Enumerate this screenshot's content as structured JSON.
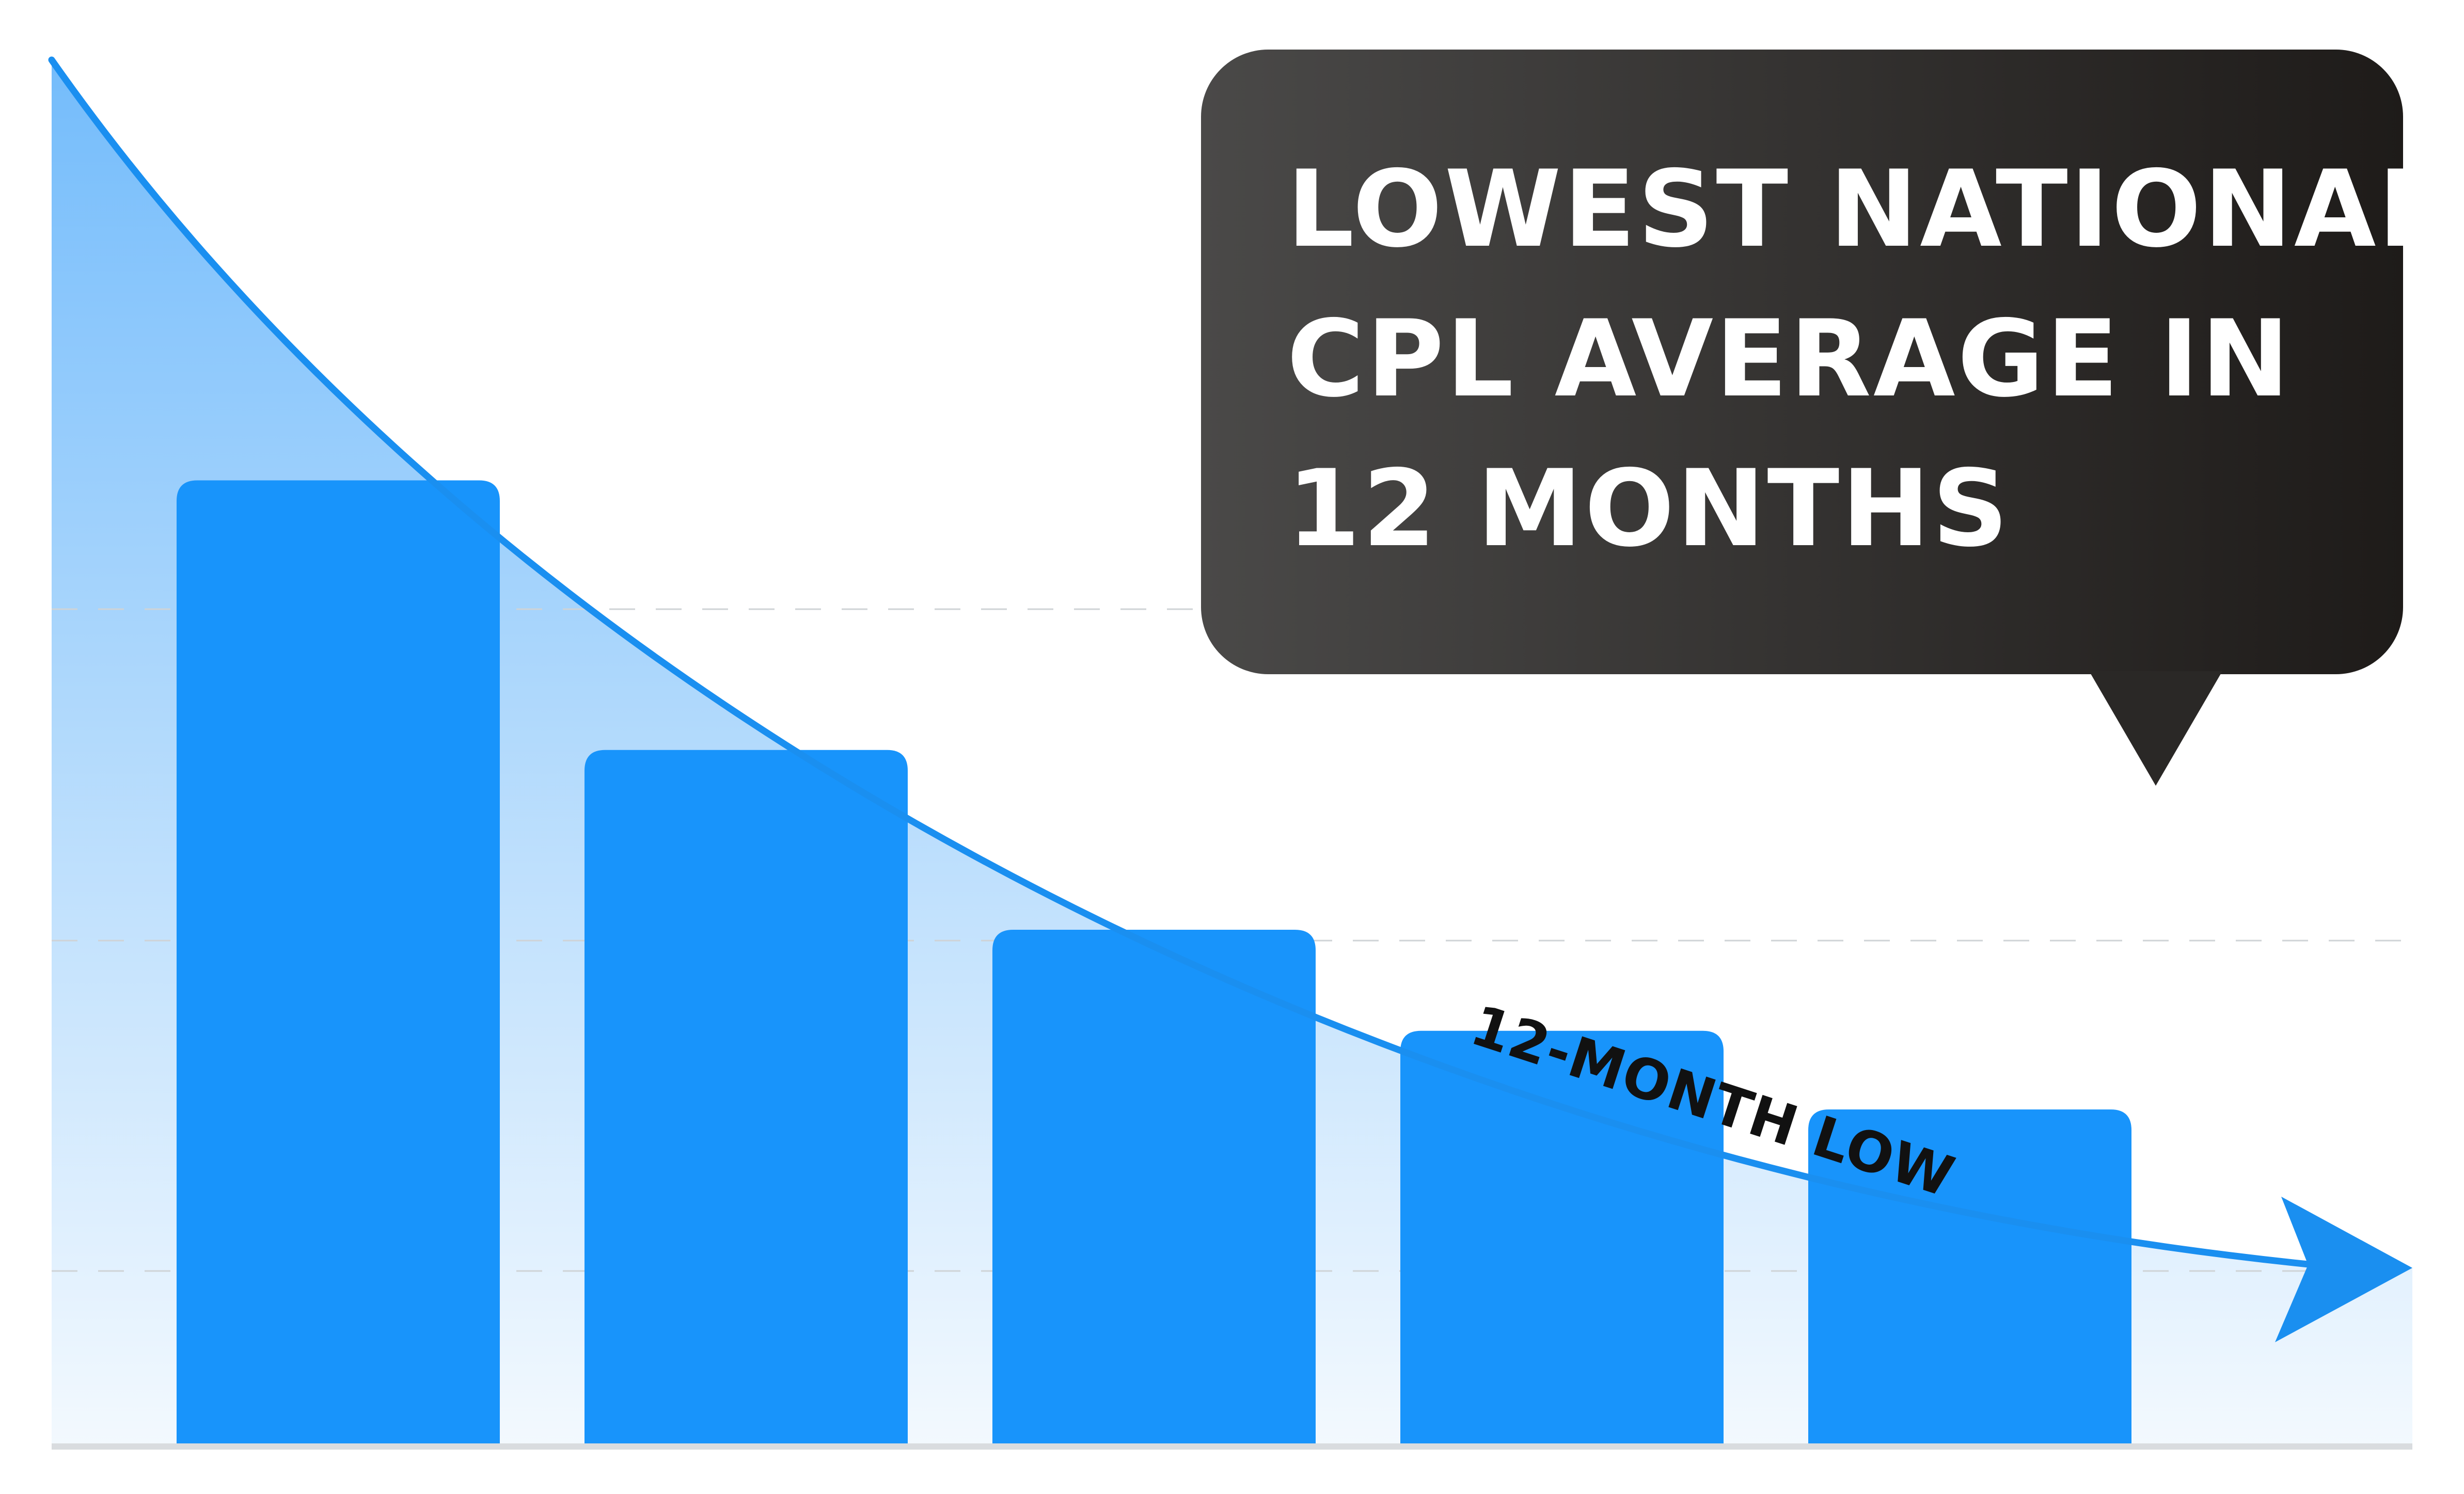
{
  "chart_data": {
    "type": "bar",
    "categories": [
      "",
      "",
      "",
      "",
      ""
    ],
    "values": [
      86,
      62,
      46,
      37,
      30
    ],
    "ylim": [
      0,
      126
    ],
    "grid": true,
    "trend_line": true,
    "annotations": {
      "callout_lines": [
        "LOWEST NATIONAL",
        "CPL AVERAGE IN",
        "12 MONTHS"
      ],
      "curve_label": "12-MONTH LOW"
    }
  },
  "colors": {
    "bar": "#1894fb",
    "trend_line": "#1a8ff0",
    "area_top": "#74bcfb",
    "area_bottom": "#f3f9fe",
    "callout_left": "#4a4948",
    "callout_right": "#1e1b19",
    "baseline": "#d9dcdf",
    "grid": "#cfd3d6"
  }
}
